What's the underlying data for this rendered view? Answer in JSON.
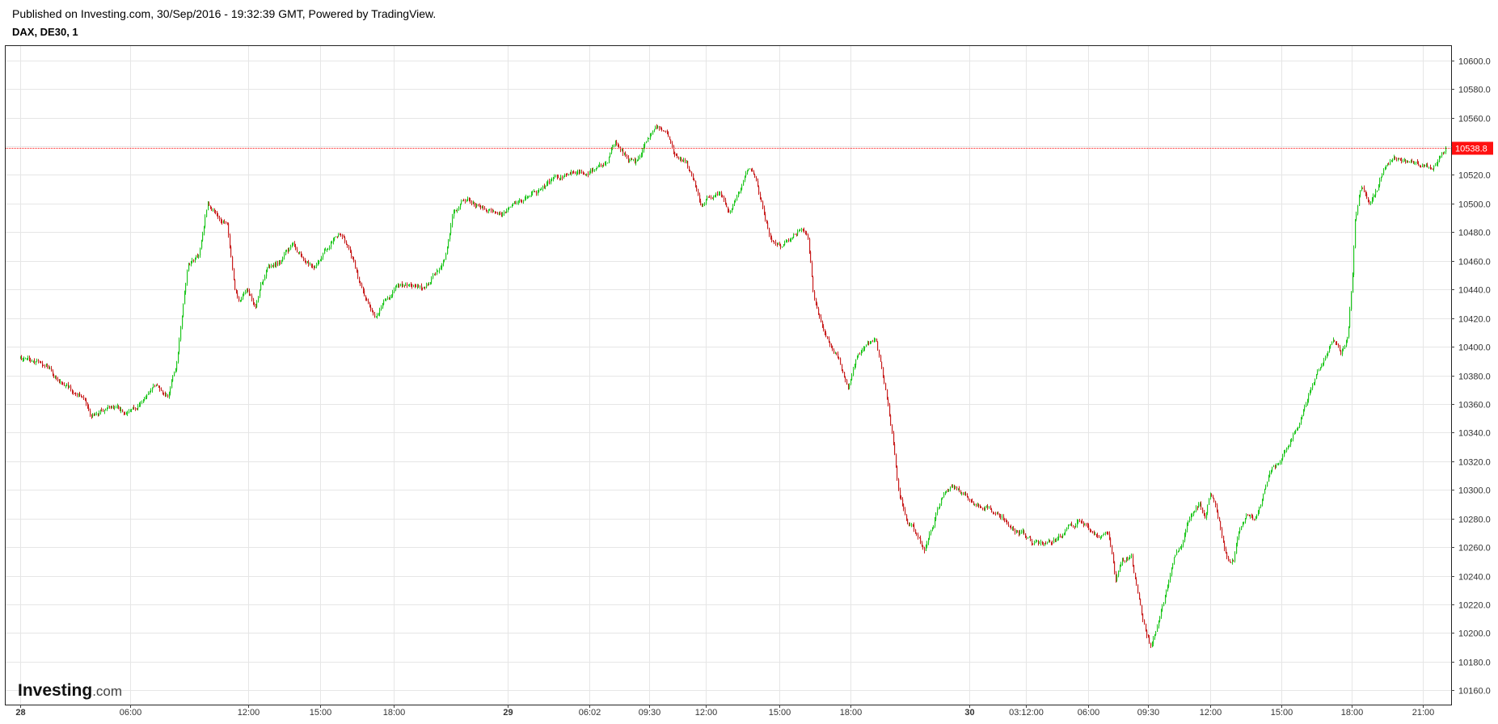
{
  "header": {
    "published": "Published on Investing.com, 30/Sep/2016 - 19:32:39 GMT, Powered by TradingView.",
    "symbol": "DAX, DE30, 1"
  },
  "logo": {
    "main": "Investing",
    "suffix": ".com"
  },
  "colors": {
    "up": "#1fc61f",
    "down": "#c81e1e",
    "grid": "#e6e6e6",
    "last_price_bg": "#ff1010",
    "last_price_line": "#ff1010"
  },
  "chart_data": {
    "type": "candlestick",
    "ylim": [
      10150,
      10610
    ],
    "y_ticks": [
      "10600.0",
      "10580.0",
      "10560.0",
      "10540.0",
      "10520.0",
      "10500.0",
      "10480.0",
      "10460.0",
      "10440.0",
      "10420.0",
      "10400.0",
      "10380.0",
      "10360.0",
      "10340.0",
      "10320.0",
      "10300.0",
      "10280.0",
      "10260.0",
      "10240.0",
      "10220.0",
      "10200.0",
      "10180.0",
      "10160.0"
    ],
    "x_ticks": [
      {
        "label": "28",
        "pos": 0.0,
        "major": true
      },
      {
        "label": "06:00",
        "pos": 3.9,
        "major": false
      },
      {
        "label": "12:00",
        "pos": 8.05,
        "major": false
      },
      {
        "label": "15:00",
        "pos": 10.6,
        "major": false
      },
      {
        "label": "18:00",
        "pos": 13.2,
        "major": false
      },
      {
        "label": "29",
        "pos": 17.2,
        "major": true
      },
      {
        "label": "06:02",
        "pos": 20.1,
        "major": false
      },
      {
        "label": "09:30",
        "pos": 22.2,
        "major": false
      },
      {
        "label": "12:00",
        "pos": 24.2,
        "major": false
      },
      {
        "label": "15:00",
        "pos": 26.8,
        "major": false
      },
      {
        "label": "18:00",
        "pos": 29.3,
        "major": false
      },
      {
        "label": "30",
        "pos": 33.5,
        "major": true
      },
      {
        "label": "03:12:00",
        "pos": 35.5,
        "major": false
      },
      {
        "label": "06:00",
        "pos": 37.7,
        "major": false
      },
      {
        "label": "09:30",
        "pos": 39.8,
        "major": false
      },
      {
        "label": "12:00",
        "pos": 42.0,
        "major": false
      },
      {
        "label": "15:00",
        "pos": 44.5,
        "major": false
      },
      {
        "label": "18:00",
        "pos": 47.0,
        "major": false
      },
      {
        "label": "21:00",
        "pos": 49.5,
        "major": false
      }
    ],
    "x_range": [
      -0.5,
      50.5
    ],
    "last_price": 10538.8,
    "last_price_label": "10538.8",
    "path": [
      [
        0.0,
        10392
      ],
      [
        0.9,
        10387
      ],
      [
        1.4,
        10375
      ],
      [
        2.0,
        10368
      ],
      [
        2.3,
        10365
      ],
      [
        2.45,
        10352
      ],
      [
        2.8,
        10355
      ],
      [
        3.3,
        10360
      ],
      [
        3.8,
        10353
      ],
      [
        4.3,
        10362
      ],
      [
        4.8,
        10373
      ],
      [
        5.2,
        10365
      ],
      [
        5.5,
        10385
      ],
      [
        5.75,
        10430
      ],
      [
        5.9,
        10455
      ],
      [
        6.3,
        10465
      ],
      [
        6.6,
        10500
      ],
      [
        6.9,
        10495
      ],
      [
        7.3,
        10485
      ],
      [
        7.55,
        10440
      ],
      [
        7.7,
        10430
      ],
      [
        8.0,
        10438
      ],
      [
        8.3,
        10430
      ],
      [
        8.7,
        10455
      ],
      [
        9.2,
        10460
      ],
      [
        9.6,
        10470
      ],
      [
        10.0,
        10460
      ],
      [
        10.4,
        10455
      ],
      [
        10.8,
        10470
      ],
      [
        11.2,
        10478
      ],
      [
        11.6,
        10470
      ],
      [
        11.9,
        10450
      ],
      [
        12.2,
        10430
      ],
      [
        12.5,
        10418
      ],
      [
        12.9,
        10435
      ],
      [
        13.3,
        10442
      ],
      [
        13.7,
        10445
      ],
      [
        14.2,
        10440
      ],
      [
        14.6,
        10450
      ],
      [
        15.0,
        10462
      ],
      [
        15.3,
        10495
      ],
      [
        15.7,
        10502
      ],
      [
        16.1,
        10498
      ],
      [
        16.6,
        10495
      ],
      [
        17.0,
        10492
      ],
      [
        17.4,
        10497
      ],
      [
        17.9,
        10505
      ],
      [
        18.4,
        10510
      ],
      [
        18.9,
        10517
      ],
      [
        19.4,
        10523
      ],
      [
        19.9,
        10522
      ],
      [
        20.3,
        10525
      ],
      [
        20.7,
        10528
      ],
      [
        21.0,
        10543
      ],
      [
        21.3,
        10535
      ],
      [
        21.7,
        10527
      ],
      [
        22.0,
        10540
      ],
      [
        22.4,
        10552
      ],
      [
        22.8,
        10550
      ],
      [
        23.1,
        10530
      ],
      [
        23.5,
        10527
      ],
      [
        23.8,
        10512
      ],
      [
        24.0,
        10497
      ],
      [
        24.3,
        10507
      ],
      [
        24.7,
        10505
      ],
      [
        25.0,
        10495
      ],
      [
        25.4,
        10508
      ],
      [
        25.7,
        10525
      ],
      [
        25.9,
        10520
      ],
      [
        26.2,
        10495
      ],
      [
        26.5,
        10473
      ],
      [
        26.9,
        10472
      ],
      [
        27.3,
        10478
      ],
      [
        27.6,
        10485
      ],
      [
        27.8,
        10476
      ],
      [
        28.0,
        10435
      ],
      [
        28.3,
        10415
      ],
      [
        28.6,
        10402
      ],
      [
        28.9,
        10390
      ],
      [
        29.2,
        10370
      ],
      [
        29.5,
        10395
      ],
      [
        29.9,
        10400
      ],
      [
        30.2,
        10405
      ],
      [
        30.5,
        10375
      ],
      [
        30.8,
        10335
      ],
      [
        31.0,
        10300
      ],
      [
        31.3,
        10280
      ],
      [
        31.6,
        10270
      ],
      [
        31.9,
        10258
      ],
      [
        32.2,
        10275
      ],
      [
        32.5,
        10295
      ],
      [
        32.9,
        10305
      ],
      [
        33.3,
        10298
      ],
      [
        33.7,
        10290
      ],
      [
        34.1,
        10290
      ],
      [
        34.5,
        10283
      ],
      [
        34.9,
        10275
      ],
      [
        35.3,
        10270
      ],
      [
        35.7,
        10263
      ],
      [
        36.1,
        10262
      ],
      [
        36.5,
        10266
      ],
      [
        36.9,
        10272
      ],
      [
        37.3,
        10278
      ],
      [
        37.7,
        10272
      ],
      [
        38.1,
        10268
      ],
      [
        38.4,
        10270
      ],
      [
        38.65,
        10235
      ],
      [
        38.9,
        10250
      ],
      [
        39.2,
        10255
      ],
      [
        39.5,
        10220
      ],
      [
        39.75,
        10198
      ],
      [
        39.9,
        10190
      ],
      [
        40.1,
        10205
      ],
      [
        40.4,
        10225
      ],
      [
        40.7,
        10250
      ],
      [
        41.0,
        10260
      ],
      [
        41.3,
        10283
      ],
      [
        41.6,
        10290
      ],
      [
        41.8,
        10278
      ],
      [
        42.0,
        10298
      ],
      [
        42.3,
        10280
      ],
      [
        42.6,
        10252
      ],
      [
        42.8,
        10250
      ],
      [
        43.0,
        10272
      ],
      [
        43.3,
        10282
      ],
      [
        43.6,
        10278
      ],
      [
        43.9,
        10300
      ],
      [
        44.2,
        10315
      ],
      [
        44.5,
        10320
      ],
      [
        44.8,
        10335
      ],
      [
        45.1,
        10345
      ],
      [
        45.4,
        10362
      ],
      [
        45.7,
        10378
      ],
      [
        46.0,
        10390
      ],
      [
        46.3,
        10405
      ],
      [
        46.6,
        10395
      ],
      [
        46.85,
        10410
      ],
      [
        47.0,
        10450
      ],
      [
        47.1,
        10490
      ],
      [
        47.3,
        10512
      ],
      [
        47.6,
        10502
      ],
      [
        47.9,
        10512
      ],
      [
        48.2,
        10528
      ],
      [
        48.5,
        10532
      ],
      [
        48.8,
        10530
      ],
      [
        49.1,
        10527
      ],
      [
        49.5,
        10526
      ],
      [
        49.8,
        10524
      ],
      [
        50.1,
        10532
      ],
      [
        50.3,
        10538
      ]
    ]
  }
}
